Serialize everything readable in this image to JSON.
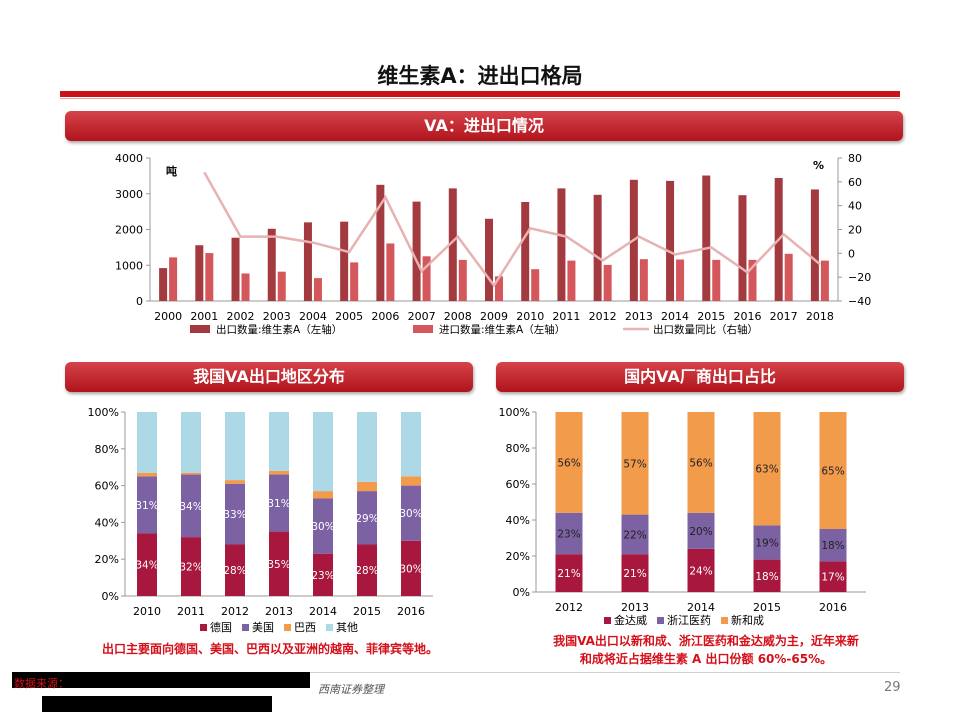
{
  "page": {
    "title": "维生素A：进出口格局",
    "page_number": "29",
    "source_note": "西南证券整理",
    "source_label": "数据来源："
  },
  "banners": {
    "top": "VA：进出口情况",
    "left": "我国VA出口地区分布",
    "right": "国内VA厂商出口占比"
  },
  "notes": {
    "left": "出口主要面向德国、美国、巴西以及亚洲的越南、菲律宾等地。",
    "right_line1": "我国VA出口以新和成、浙江医药和金达威为主，近年来新",
    "right_line2": "和成将近占据维生素 A 出口份额 60%-65%。"
  },
  "colors": {
    "export": "#a33a3f",
    "import": "#d4575b",
    "yoy": "#e7b2b2",
    "germany": "#a8173e",
    "usa": "#7c62a3",
    "brazil": "#f29b4b",
    "other": "#add8e6",
    "jindawei": "#a8173e",
    "zhejiang": "#7c62a3",
    "xinhecheng": "#f29b4b"
  },
  "chart_data": [
    {
      "type": "bar",
      "categories": [
        "2000",
        "2001",
        "2002",
        "2003",
        "2004",
        "2005",
        "2006",
        "2007",
        "2008",
        "2009",
        "2010",
        "2011",
        "2012",
        "2013",
        "2014",
        "2015",
        "2016",
        "2017",
        "2018"
      ],
      "series": [
        {
          "name": "出口数量:维生素A（左轴）",
          "axis": "left",
          "type": "bar",
          "values": [
            920,
            1560,
            1770,
            2020,
            2200,
            2220,
            3250,
            2780,
            3150,
            2300,
            2770,
            3150,
            2970,
            3390,
            3360,
            3510,
            2960,
            3440,
            3120
          ]
        },
        {
          "name": "进口数量:维生素A（左轴）",
          "axis": "left",
          "type": "bar",
          "values": [
            1220,
            1340,
            770,
            820,
            640,
            1080,
            1610,
            1250,
            1150,
            690,
            890,
            1130,
            1010,
            1170,
            1160,
            1150,
            1150,
            1320,
            1130
          ]
        },
        {
          "name": "出口数量同比（右轴）",
          "axis": "right",
          "type": "line",
          "values": [
            null,
            68,
            14,
            14,
            9,
            1,
            47,
            -15,
            14,
            -27,
            21,
            14,
            -6,
            14,
            -1,
            5,
            -16,
            16,
            -9
          ]
        }
      ],
      "ylabel_left": "吨",
      "ylabel_right": "%",
      "ylim_left": [
        0,
        4000
      ],
      "yticks_left": [
        0,
        1000,
        2000,
        3000,
        4000
      ],
      "ylim_right": [
        -40,
        80
      ],
      "yticks_right": [
        -40,
        -20,
        0,
        20,
        40,
        60,
        80
      ],
      "legend": "bottom"
    },
    {
      "type": "bar",
      "stacked": true,
      "categories": [
        "2010",
        "2011",
        "2012",
        "2013",
        "2014",
        "2015",
        "2016"
      ],
      "series": [
        {
          "name": "德国",
          "values": [
            34,
            32,
            28,
            35,
            23,
            28,
            30
          ],
          "labels": [
            "34%",
            "32%",
            "28%",
            "35%",
            "23%",
            "28%",
            "30%"
          ]
        },
        {
          "name": "美国",
          "values": [
            31,
            34,
            33,
            31,
            30,
            29,
            30
          ],
          "labels": [
            "31%",
            "34%",
            "33%",
            "31%",
            "30%",
            "29%",
            "30%"
          ]
        },
        {
          "name": "巴西",
          "values": [
            2,
            1,
            2,
            2,
            4,
            5,
            5
          ]
        },
        {
          "name": "其他",
          "values": [
            33,
            33,
            37,
            32,
            43,
            38,
            35
          ]
        }
      ],
      "ylim": [
        0,
        100
      ],
      "yticks": [
        "0%",
        "20%",
        "40%",
        "60%",
        "80%",
        "100%"
      ],
      "legend": "bottom"
    },
    {
      "type": "bar",
      "stacked": true,
      "categories": [
        "2012",
        "2013",
        "2014",
        "2015",
        "2016"
      ],
      "series": [
        {
          "name": "金达威",
          "values": [
            21,
            21,
            24,
            18,
            17
          ],
          "labels": [
            "21%",
            "21%",
            "24%",
            "18%",
            "17%"
          ]
        },
        {
          "name": "浙江医药",
          "values": [
            23,
            22,
            20,
            19,
            18
          ],
          "labels": [
            "23%",
            "22%",
            "20%",
            "19%",
            "18%"
          ]
        },
        {
          "name": "新和成",
          "values": [
            56,
            57,
            56,
            63,
            65
          ],
          "labels": [
            "56%",
            "57%",
            "56%",
            "63%",
            "65%"
          ]
        }
      ],
      "ylim": [
        0,
        100
      ],
      "yticks": [
        "0%",
        "20%",
        "40%",
        "60%",
        "80%",
        "100%"
      ],
      "legend": "bottom"
    }
  ]
}
